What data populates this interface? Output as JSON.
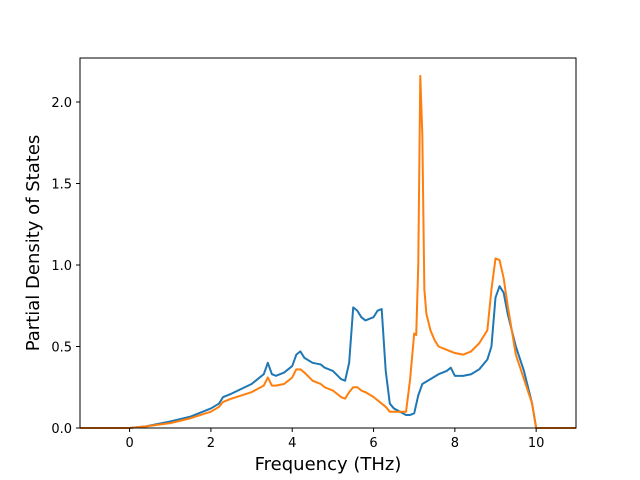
{
  "chart_data": {
    "type": "line",
    "title": "",
    "xlabel": "Frequency (THz)",
    "ylabel": "Partial Density of States",
    "xlim": [
      -1.22,
      10.98
    ],
    "ylim": [
      0.0,
      2.27
    ],
    "xticks": [
      0,
      2,
      4,
      6,
      8,
      10
    ],
    "xtick_labels": [
      "0",
      "2",
      "4",
      "6",
      "8",
      "10"
    ],
    "yticks": [
      0.0,
      0.5,
      1.0,
      1.5,
      2.0
    ],
    "ytick_labels": [
      "0.0",
      "0.5",
      "1.0",
      "1.5",
      "2.0"
    ],
    "grid": false,
    "series": [
      {
        "color": "#1f77b4",
        "x": [
          -1.22,
          0.0,
          0.4,
          1.0,
          1.5,
          2.0,
          2.2,
          2.3,
          2.5,
          3.0,
          3.3,
          3.4,
          3.5,
          3.6,
          3.8,
          4.0,
          4.1,
          4.2,
          4.3,
          4.5,
          4.7,
          4.8,
          5.0,
          5.2,
          5.3,
          5.4,
          5.5,
          5.6,
          5.7,
          5.8,
          6.0,
          6.1,
          6.2,
          6.3,
          6.4,
          6.5,
          6.8,
          6.9,
          7.0,
          7.1,
          7.2,
          7.4,
          7.6,
          7.8,
          7.9,
          8.0,
          8.2,
          8.4,
          8.6,
          8.8,
          8.9,
          9.0,
          9.1,
          9.2,
          9.3,
          9.5,
          9.7,
          9.9,
          10.0,
          10.98
        ],
        "y": [
          0.0,
          0.0,
          0.01,
          0.04,
          0.07,
          0.12,
          0.15,
          0.19,
          0.21,
          0.27,
          0.33,
          0.4,
          0.33,
          0.32,
          0.34,
          0.38,
          0.45,
          0.47,
          0.43,
          0.4,
          0.39,
          0.37,
          0.35,
          0.3,
          0.29,
          0.4,
          0.74,
          0.72,
          0.68,
          0.66,
          0.68,
          0.72,
          0.73,
          0.35,
          0.15,
          0.12,
          0.08,
          0.08,
          0.09,
          0.2,
          0.27,
          0.3,
          0.33,
          0.35,
          0.37,
          0.32,
          0.32,
          0.33,
          0.36,
          0.42,
          0.5,
          0.8,
          0.87,
          0.83,
          0.7,
          0.5,
          0.35,
          0.15,
          0.0,
          0.0
        ]
      },
      {
        "color": "#ff7f0e",
        "x": [
          -1.22,
          0.0,
          0.4,
          1.0,
          1.5,
          2.0,
          2.2,
          2.3,
          2.5,
          3.0,
          3.3,
          3.4,
          3.5,
          3.6,
          3.8,
          4.0,
          4.1,
          4.2,
          4.3,
          4.5,
          4.7,
          4.8,
          5.0,
          5.2,
          5.3,
          5.4,
          5.5,
          5.6,
          5.7,
          5.8,
          6.0,
          6.1,
          6.2,
          6.3,
          6.4,
          6.5,
          6.8,
          6.9,
          7.0,
          7.05,
          7.1,
          7.15,
          7.2,
          7.25,
          7.3,
          7.4,
          7.5,
          7.6,
          7.8,
          8.0,
          8.2,
          8.4,
          8.6,
          8.8,
          8.9,
          9.0,
          9.1,
          9.2,
          9.3,
          9.5,
          9.7,
          9.9,
          10.0,
          10.98
        ],
        "y": [
          0.0,
          0.0,
          0.01,
          0.03,
          0.06,
          0.1,
          0.13,
          0.16,
          0.18,
          0.22,
          0.26,
          0.31,
          0.26,
          0.26,
          0.27,
          0.31,
          0.36,
          0.36,
          0.34,
          0.29,
          0.27,
          0.25,
          0.23,
          0.19,
          0.18,
          0.22,
          0.25,
          0.25,
          0.23,
          0.22,
          0.19,
          0.17,
          0.15,
          0.13,
          0.1,
          0.1,
          0.1,
          0.3,
          0.58,
          0.57,
          1.0,
          2.16,
          1.8,
          0.85,
          0.7,
          0.6,
          0.54,
          0.5,
          0.48,
          0.46,
          0.45,
          0.47,
          0.52,
          0.6,
          0.85,
          1.04,
          1.03,
          0.92,
          0.75,
          0.45,
          0.3,
          0.15,
          0.0,
          0.0
        ]
      }
    ]
  }
}
